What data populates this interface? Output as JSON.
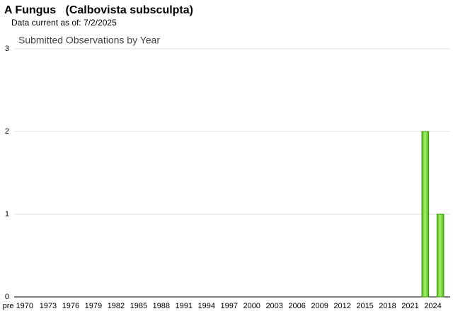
{
  "chart_data": {
    "type": "bar",
    "header": "A Fungus   (Calbovista subsculpta)",
    "subtitle": "Data current as of: 7/2/2025",
    "title": "Submitted Observations by Year",
    "categories": [
      "pre 1970",
      null,
      null,
      null,
      "1973",
      null,
      null,
      "1976",
      null,
      null,
      "1979",
      null,
      null,
      "1982",
      null,
      null,
      "1985",
      null,
      null,
      "1988",
      null,
      null,
      "1991",
      null,
      null,
      "1994",
      null,
      null,
      "1997",
      null,
      null,
      "2000",
      null,
      null,
      "2003",
      null,
      null,
      "2006",
      null,
      null,
      "2009",
      null,
      null,
      "2012",
      null,
      null,
      "2015",
      null,
      null,
      "2018",
      null,
      null,
      "2021",
      null,
      null,
      "2024",
      null
    ],
    "values": [
      0,
      0,
      0,
      0,
      0,
      0,
      0,
      0,
      0,
      0,
      0,
      0,
      0,
      0,
      0,
      0,
      0,
      0,
      0,
      0,
      0,
      0,
      0,
      0,
      0,
      0,
      0,
      0,
      0,
      0,
      0,
      0,
      0,
      0,
      0,
      0,
      0,
      0,
      0,
      0,
      0,
      0,
      0,
      0,
      0,
      0,
      0,
      0,
      0,
      0,
      0,
      0,
      0,
      0,
      2,
      0,
      1
    ],
    "color": "#7ede3a",
    "ylim": [
      0,
      3
    ],
    "yticks": [
      0,
      1,
      2,
      3
    ],
    "grid": true
  }
}
